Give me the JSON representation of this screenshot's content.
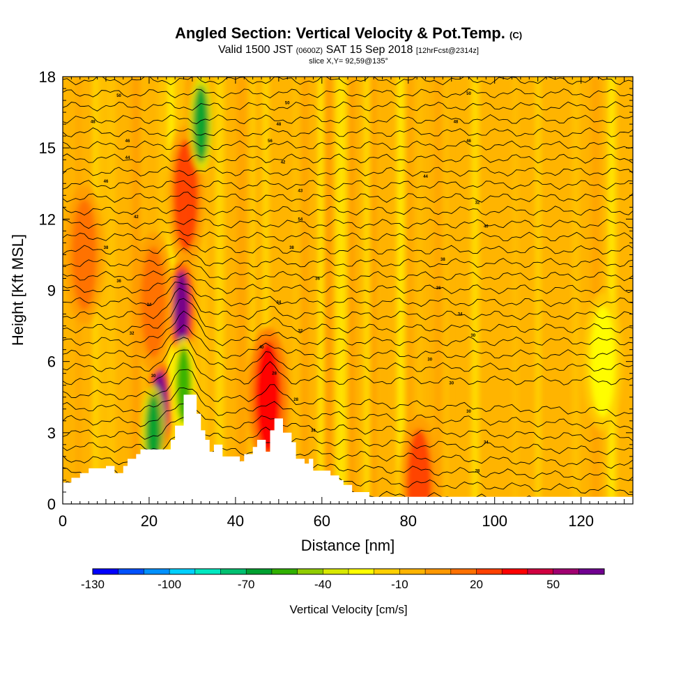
{
  "title": {
    "main": "Angled Section: Vertical Velocity & Pot.Temp.",
    "main_unit": "(C)",
    "valid_prefix": "Valid 1500 JST",
    "valid_utc": "(0600Z)",
    "valid_date": "SAT 15 Sep 2018",
    "forecast": "[12hrFcst@2314z]",
    "slice": "slice X,Y= 92,59@135°"
  },
  "chart_data": {
    "type": "heatmap",
    "xlabel": "Distance [nm]",
    "ylabel": "Height [Kft MSL]",
    "xlim": [
      0,
      132
    ],
    "ylim": [
      0,
      18
    ],
    "x_ticks": [
      0,
      20,
      40,
      60,
      80,
      100,
      120
    ],
    "y_ticks": [
      0,
      3,
      6,
      9,
      12,
      15,
      18
    ],
    "colorbar": {
      "title": "Vertical Velocity [cm/s]",
      "min": -130,
      "max": 70,
      "step": 10,
      "tick_values": [
        -130,
        -100,
        -70,
        -40,
        -10,
        20,
        50
      ],
      "tick_labels": [
        "-130",
        "-100",
        "-70",
        "-40",
        "-10",
        "20",
        "50"
      ],
      "colors": [
        "#0000ff",
        "#0050ff",
        "#0090ff",
        "#00d0ff",
        "#00e8c0",
        "#00c070",
        "#00a030",
        "#30b000",
        "#90cc00",
        "#d8e800",
        "#ffff00",
        "#ffd000",
        "#ffb400",
        "#ff9800",
        "#ff7000",
        "#ff4000",
        "#ff0000",
        "#d00040",
        "#a00070",
        "#700090"
      ]
    },
    "velocity_features": [
      {
        "x": 22.5,
        "y": 4.0,
        "value": 60
      },
      {
        "x": 27.5,
        "y": 8.2,
        "value": 70
      },
      {
        "x": 28.5,
        "y": 13.0,
        "value": 20
      },
      {
        "x": 32.0,
        "y": 16.0,
        "value": -70
      },
      {
        "x": 28.0,
        "y": 5.0,
        "value": -60
      },
      {
        "x": 21.0,
        "y": 3.0,
        "value": -70
      },
      {
        "x": 47.5,
        "y": 4.5,
        "value": 30
      },
      {
        "x": 21.0,
        "y": 8.5,
        "value": 15
      },
      {
        "x": 5.0,
        "y": 10.5,
        "value": 10
      },
      {
        "x": 82.5,
        "y": 0.8,
        "value": 20
      },
      {
        "x": 125.0,
        "y": 6.0,
        "value": -30
      }
    ],
    "contour_labels": [
      {
        "text": "50",
        "x": 13,
        "y": 17.2
      },
      {
        "text": "48",
        "x": 7,
        "y": 16.1
      },
      {
        "text": "46",
        "x": 15,
        "y": 15.3
      },
      {
        "text": "44",
        "x": 15,
        "y": 14.6
      },
      {
        "text": "46",
        "x": 10,
        "y": 13.6
      },
      {
        "text": "42",
        "x": 17,
        "y": 12.1
      },
      {
        "text": "38",
        "x": 10,
        "y": 10.8
      },
      {
        "text": "36",
        "x": 13,
        "y": 9.4
      },
      {
        "text": "34",
        "x": 20,
        "y": 8.4
      },
      {
        "text": "32",
        "x": 16,
        "y": 7.2
      },
      {
        "text": "30",
        "x": 21,
        "y": 5.4
      },
      {
        "text": "50",
        "x": 52,
        "y": 16.9
      },
      {
        "text": "48",
        "x": 50,
        "y": 16.0
      },
      {
        "text": "56",
        "x": 48,
        "y": 15.3
      },
      {
        "text": "42",
        "x": 51,
        "y": 14.4
      },
      {
        "text": "43",
        "x": 55,
        "y": 13.2
      },
      {
        "text": "54",
        "x": 55,
        "y": 12.0
      },
      {
        "text": "38",
        "x": 53,
        "y": 10.8
      },
      {
        "text": "36",
        "x": 59,
        "y": 9.5
      },
      {
        "text": "34",
        "x": 50,
        "y": 8.5
      },
      {
        "text": "32",
        "x": 55,
        "y": 7.3
      },
      {
        "text": "40",
        "x": 46,
        "y": 6.6
      },
      {
        "text": "28",
        "x": 49,
        "y": 5.5
      },
      {
        "text": "28",
        "x": 54,
        "y": 4.4
      },
      {
        "text": "34",
        "x": 58,
        "y": 3.1
      },
      {
        "text": "50",
        "x": 94,
        "y": 17.3
      },
      {
        "text": "48",
        "x": 91,
        "y": 16.1
      },
      {
        "text": "46",
        "x": 94,
        "y": 15.3
      },
      {
        "text": "44",
        "x": 84,
        "y": 13.8
      },
      {
        "text": "32",
        "x": 96,
        "y": 12.7
      },
      {
        "text": "40",
        "x": 98,
        "y": 11.7
      },
      {
        "text": "38",
        "x": 88,
        "y": 10.3
      },
      {
        "text": "36",
        "x": 87,
        "y": 9.1
      },
      {
        "text": "34",
        "x": 92,
        "y": 8.0
      },
      {
        "text": "30",
        "x": 95,
        "y": 7.1
      },
      {
        "text": "30",
        "x": 85,
        "y": 6.1
      },
      {
        "text": "30",
        "x": 90,
        "y": 5.1
      },
      {
        "text": "30",
        "x": 94,
        "y": 3.9
      },
      {
        "text": "34",
        "x": 98,
        "y": 2.6
      },
      {
        "text": "28",
        "x": 96,
        "y": 1.4
      }
    ],
    "terrain": [
      [
        0,
        0
      ],
      [
        0,
        0.9
      ],
      [
        2,
        0.9
      ],
      [
        2,
        1.1
      ],
      [
        4,
        1.1
      ],
      [
        4,
        1.3
      ],
      [
        6,
        1.3
      ],
      [
        6,
        1.5
      ],
      [
        10,
        1.5
      ],
      [
        10,
        1.6
      ],
      [
        12,
        1.6
      ],
      [
        12,
        1.3
      ],
      [
        14,
        1.3
      ],
      [
        14,
        1.6
      ],
      [
        15,
        1.6
      ],
      [
        15,
        1.9
      ],
      [
        17,
        1.9
      ],
      [
        17,
        2.1
      ],
      [
        18,
        2.1
      ],
      [
        18,
        2.3
      ],
      [
        25,
        2.3
      ],
      [
        25,
        2.7
      ],
      [
        26,
        2.7
      ],
      [
        26,
        3.3
      ],
      [
        28,
        3.3
      ],
      [
        28,
        4.6
      ],
      [
        31,
        4.6
      ],
      [
        31,
        3.8
      ],
      [
        32,
        3.8
      ],
      [
        32,
        3.1
      ],
      [
        33,
        3.1
      ],
      [
        33,
        2.7
      ],
      [
        34,
        2.7
      ],
      [
        34,
        2.2
      ],
      [
        35,
        2.2
      ],
      [
        35,
        2.5
      ],
      [
        37,
        2.5
      ],
      [
        37,
        2.0
      ],
      [
        41,
        2.0
      ],
      [
        41,
        1.8
      ],
      [
        42,
        1.8
      ],
      [
        42,
        2.1
      ],
      [
        44,
        2.1
      ],
      [
        44,
        2.4
      ],
      [
        45,
        2.4
      ],
      [
        45,
        2.7
      ],
      [
        47,
        2.7
      ],
      [
        47,
        2.2
      ],
      [
        48,
        2.2
      ],
      [
        48,
        3.1
      ],
      [
        49,
        3.1
      ],
      [
        49,
        3.6
      ],
      [
        51,
        3.6
      ],
      [
        51,
        3.0
      ],
      [
        53,
        3.0
      ],
      [
        53,
        2.6
      ],
      [
        54,
        2.6
      ],
      [
        54,
        1.9
      ],
      [
        56,
        1.9
      ],
      [
        56,
        1.7
      ],
      [
        57,
        1.7
      ],
      [
        57,
        1.9
      ],
      [
        58,
        1.9
      ],
      [
        58,
        1.4
      ],
      [
        62,
        1.4
      ],
      [
        62,
        1.2
      ],
      [
        64,
        1.2
      ],
      [
        64,
        1.0
      ],
      [
        65,
        1.0
      ],
      [
        65,
        0.8
      ],
      [
        67,
        0.8
      ],
      [
        67,
        0.5
      ],
      [
        71,
        0.5
      ],
      [
        71,
        0.3
      ],
      [
        132,
        0.3
      ],
      [
        132,
        0
      ]
    ]
  }
}
